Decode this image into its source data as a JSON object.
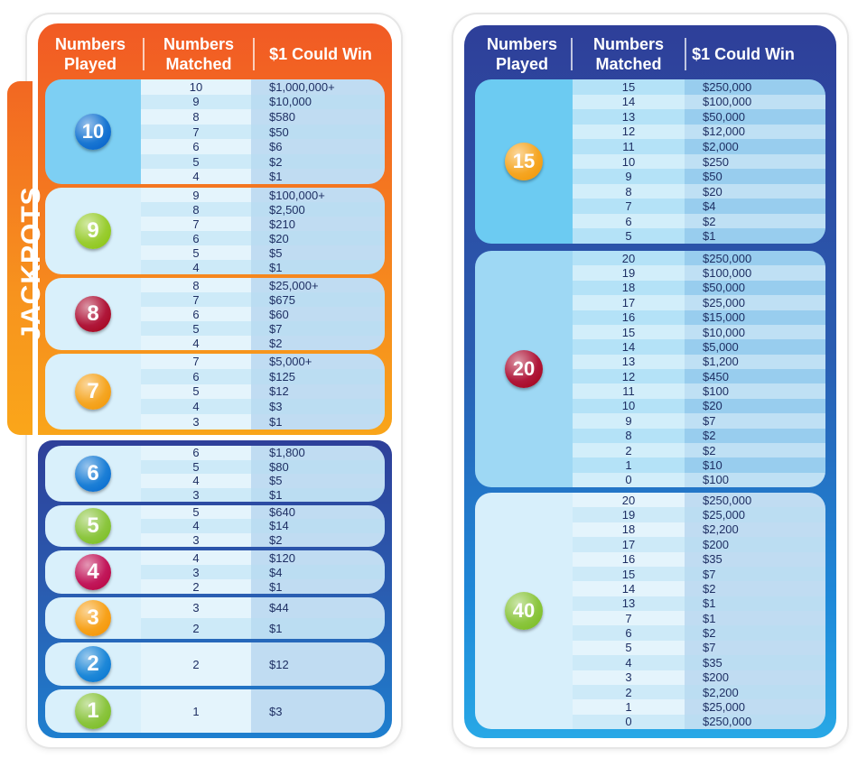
{
  "header": {
    "numbers_played": "Numbers Played",
    "numbers_matched": "Numbers Matched",
    "could_win": "$1 Could Win"
  },
  "jackpots_label": "JACKPOTS",
  "left_groups": [
    {
      "played": "10",
      "rows": [
        [
          "10",
          "$1,000,000+"
        ],
        [
          "9",
          "$10,000"
        ],
        [
          "8",
          "$580"
        ],
        [
          "7",
          "$50"
        ],
        [
          "6",
          "$6"
        ],
        [
          "5",
          "$2"
        ],
        [
          "4",
          "$1"
        ]
      ]
    },
    {
      "played": "9",
      "rows": [
        [
          "9",
          "$100,000+"
        ],
        [
          "8",
          "$2,500"
        ],
        [
          "7",
          "$210"
        ],
        [
          "6",
          "$20"
        ],
        [
          "5",
          "$5"
        ],
        [
          "4",
          "$1"
        ]
      ]
    },
    {
      "played": "8",
      "rows": [
        [
          "8",
          "$25,000+"
        ],
        [
          "7",
          "$675"
        ],
        [
          "6",
          "$60"
        ],
        [
          "5",
          "$7"
        ],
        [
          "4",
          "$2"
        ]
      ]
    },
    {
      "played": "7",
      "rows": [
        [
          "7",
          "$5,000+"
        ],
        [
          "6",
          "$125"
        ],
        [
          "5",
          "$12"
        ],
        [
          "4",
          "$3"
        ],
        [
          "3",
          "$1"
        ]
      ]
    },
    {
      "played": "6",
      "rows": [
        [
          "6",
          "$1,800"
        ],
        [
          "5",
          "$80"
        ],
        [
          "4",
          "$5"
        ],
        [
          "3",
          "$1"
        ]
      ]
    },
    {
      "played": "5",
      "rows": [
        [
          "5",
          "$640"
        ],
        [
          "4",
          "$14"
        ],
        [
          "3",
          "$2"
        ]
      ]
    },
    {
      "played": "4",
      "rows": [
        [
          "4",
          "$120"
        ],
        [
          "3",
          "$4"
        ],
        [
          "2",
          "$1"
        ]
      ]
    },
    {
      "played": "3",
      "rows": [
        [
          "3",
          "$44"
        ],
        [
          "2",
          "$1"
        ]
      ]
    },
    {
      "played": "2",
      "rows": [
        [
          "2",
          "$12"
        ]
      ]
    },
    {
      "played": "1",
      "rows": [
        [
          "1",
          "$3"
        ]
      ]
    }
  ],
  "right_groups": [
    {
      "played": "15",
      "rows": [
        [
          "15",
          "$250,000"
        ],
        [
          "14",
          "$100,000"
        ],
        [
          "13",
          "$50,000"
        ],
        [
          "12",
          "$12,000"
        ],
        [
          "11",
          "$2,000"
        ],
        [
          "10",
          "$250"
        ],
        [
          "9",
          "$50"
        ],
        [
          "8",
          "$20"
        ],
        [
          "7",
          "$4"
        ],
        [
          "6",
          "$2"
        ],
        [
          "5",
          "$1"
        ]
      ]
    },
    {
      "played": "20",
      "rows": [
        [
          "20",
          "$250,000"
        ],
        [
          "19",
          "$100,000"
        ],
        [
          "18",
          "$50,000"
        ],
        [
          "17",
          "$25,000"
        ],
        [
          "16",
          "$15,000"
        ],
        [
          "15",
          "$10,000"
        ],
        [
          "14",
          "$5,000"
        ],
        [
          "13",
          "$1,200"
        ],
        [
          "12",
          "$450"
        ],
        [
          "11",
          "$100"
        ],
        [
          "10",
          "$20"
        ],
        [
          "9",
          "$7"
        ],
        [
          "8",
          "$2"
        ],
        [
          "2",
          "$2"
        ],
        [
          "1",
          "$10"
        ],
        [
          "0",
          "$100"
        ]
      ]
    },
    {
      "played": "40",
      "rows": [
        [
          "20",
          "$250,000"
        ],
        [
          "19",
          "$25,000"
        ],
        [
          "18",
          "$2,200"
        ],
        [
          "17",
          "$200"
        ],
        [
          "16",
          "$35"
        ],
        [
          "15",
          "$7"
        ],
        [
          "14",
          "$2"
        ],
        [
          "13",
          "$1"
        ],
        [
          "7",
          "$1"
        ],
        [
          "6",
          "$2"
        ],
        [
          "5",
          "$7"
        ],
        [
          "4",
          "$35"
        ],
        [
          "3",
          "$200"
        ],
        [
          "2",
          "$2,200"
        ],
        [
          "1",
          "$25,000"
        ],
        [
          "0",
          "$250,000"
        ]
      ]
    }
  ],
  "ball_colors": {
    "1": "#8bc53f",
    "2": "#1e88d8",
    "3": "#f7a21b",
    "4": "#c2185b",
    "5": "#8cc63f",
    "6": "#1c7fd6",
    "7": "#f5a623",
    "8": "#b0173a",
    "9": "#9acd32",
    "10": "#1976d2",
    "15": "#f5a623",
    "20": "#b0173a",
    "40": "#8cc63f"
  }
}
